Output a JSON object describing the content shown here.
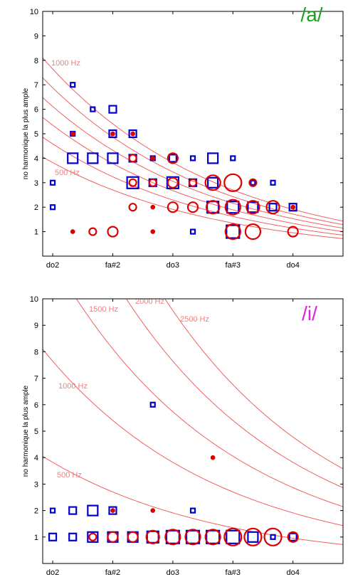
{
  "chart_data": [
    {
      "type": "scatter",
      "vowel_label": "/a/",
      "vowel_color": "#1aa31a",
      "ylabel": "no harmonique la plus ample",
      "xlabel": "",
      "ylim": [
        0,
        10
      ],
      "xlim": [
        -1,
        29
      ],
      "x_ticks": [
        {
          "x": 0,
          "label": "do2"
        },
        {
          "x": 6,
          "label": "fa#2"
        },
        {
          "x": 12,
          "label": "do3"
        },
        {
          "x": 18,
          "label": "fa#3"
        },
        {
          "x": 24,
          "label": "do4"
        }
      ],
      "y_ticks": [
        1,
        2,
        3,
        4,
        5,
        6,
        7,
        8,
        9,
        10
      ],
      "grid": false,
      "iso_frequency_hz": [
        500,
        600,
        700,
        800,
        900,
        1000
      ],
      "iso_labels": [
        {
          "hz": 500,
          "text": "500 Hz"
        },
        {
          "hz": 1000,
          "text": "1000 Hz"
        }
      ],
      "series": [
        {
          "marker": "square",
          "color": "#0000cc",
          "points": [
            {
              "x": 0,
              "y": 2,
              "s": 1
            },
            {
              "x": 0,
              "y": 3,
              "s": 1
            },
            {
              "x": 2,
              "y": 4,
              "s": 3
            },
            {
              "x": 2,
              "y": 5,
              "s": 1
            },
            {
              "x": 2,
              "y": 7,
              "s": 1
            },
            {
              "x": 4,
              "y": 4,
              "s": 3
            },
            {
              "x": 4,
              "y": 6,
              "s": 1
            },
            {
              "x": 6,
              "y": 4,
              "s": 3
            },
            {
              "x": 6,
              "y": 5,
              "s": 2
            },
            {
              "x": 6,
              "y": 6,
              "s": 2
            },
            {
              "x": 8,
              "y": 3,
              "s": 4
            },
            {
              "x": 8,
              "y": 4,
              "s": 2
            },
            {
              "x": 8,
              "y": 5,
              "s": 2
            },
            {
              "x": 10,
              "y": 3,
              "s": 2
            },
            {
              "x": 10,
              "y": 4,
              "s": 1
            },
            {
              "x": 12,
              "y": 3,
              "s": 4
            },
            {
              "x": 12,
              "y": 4,
              "s": 2
            },
            {
              "x": 14,
              "y": 1,
              "s": 1
            },
            {
              "x": 14,
              "y": 3,
              "s": 2
            },
            {
              "x": 14,
              "y": 4,
              "s": 1
            },
            {
              "x": 16,
              "y": 2,
              "s": 4
            },
            {
              "x": 16,
              "y": 3,
              "s": 3
            },
            {
              "x": 16,
              "y": 4,
              "s": 3
            },
            {
              "x": 18,
              "y": 1,
              "s": 5
            },
            {
              "x": 18,
              "y": 2,
              "s": 4
            },
            {
              "x": 18,
              "y": 4,
              "s": 1
            },
            {
              "x": 20,
              "y": 2,
              "s": 3
            },
            {
              "x": 20,
              "y": 3,
              "s": 1
            },
            {
              "x": 22,
              "y": 2,
              "s": 2
            },
            {
              "x": 22,
              "y": 3,
              "s": 1
            },
            {
              "x": 24,
              "y": 2,
              "s": 2
            }
          ]
        },
        {
          "marker": "circle",
          "color": "#dd0000",
          "points": [
            {
              "x": 2,
              "y": 1,
              "s": 1
            },
            {
              "x": 2,
              "y": 5,
              "s": 1
            },
            {
              "x": 4,
              "y": 1,
              "s": 2
            },
            {
              "x": 6,
              "y": 1,
              "s": 3
            },
            {
              "x": 6,
              "y": 5,
              "s": 1
            },
            {
              "x": 8,
              "y": 2,
              "s": 2
            },
            {
              "x": 8,
              "y": 3,
              "s": 2
            },
            {
              "x": 8,
              "y": 4,
              "s": 2
            },
            {
              "x": 8,
              "y": 5,
              "s": 1
            },
            {
              "x": 10,
              "y": 1,
              "s": 1
            },
            {
              "x": 10,
              "y": 2,
              "s": 1
            },
            {
              "x": 10,
              "y": 3,
              "s": 2
            },
            {
              "x": 10,
              "y": 4,
              "s": 1
            },
            {
              "x": 12,
              "y": 2,
              "s": 3
            },
            {
              "x": 12,
              "y": 3,
              "s": 3
            },
            {
              "x": 12,
              "y": 4,
              "s": 3
            },
            {
              "x": 14,
              "y": 2,
              "s": 3
            },
            {
              "x": 14,
              "y": 3,
              "s": 2
            },
            {
              "x": 16,
              "y": 2,
              "s": 4
            },
            {
              "x": 16,
              "y": 3,
              "s": 5
            },
            {
              "x": 18,
              "y": 1,
              "s": 5
            },
            {
              "x": 18,
              "y": 2,
              "s": 5
            },
            {
              "x": 18,
              "y": 3,
              "s": 6
            },
            {
              "x": 20,
              "y": 1,
              "s": 5
            },
            {
              "x": 20,
              "y": 2,
              "s": 4
            },
            {
              "x": 20,
              "y": 3,
              "s": 2
            },
            {
              "x": 22,
              "y": 2,
              "s": 4
            },
            {
              "x": 24,
              "y": 1,
              "s": 3
            },
            {
              "x": 24,
              "y": 2,
              "s": 1
            }
          ]
        }
      ]
    },
    {
      "type": "scatter",
      "vowel_label": "/i/",
      "vowel_color": "#e020e0",
      "ylabel": "no harmonique la plus ample",
      "xlabel": "",
      "ylim": [
        0,
        10
      ],
      "xlim": [
        -1,
        29
      ],
      "x_ticks": [
        {
          "x": 0,
          "label": "do2"
        },
        {
          "x": 6,
          "label": "fa#2"
        },
        {
          "x": 12,
          "label": "do3"
        },
        {
          "x": 18,
          "label": "fa#3"
        },
        {
          "x": 24,
          "label": "do4"
        }
      ],
      "y_ticks": [
        1,
        2,
        3,
        4,
        5,
        6,
        7,
        8,
        9,
        10
      ],
      "grid": false,
      "iso_frequency_hz": [
        500,
        1000,
        1500,
        2000,
        2500
      ],
      "iso_labels": [
        {
          "hz": 500,
          "text": "500 Hz"
        },
        {
          "hz": 1000,
          "text": "1000 Hz"
        },
        {
          "hz": 1500,
          "text": "1500 Hz"
        },
        {
          "hz": 2000,
          "text": "2000 Hz"
        },
        {
          "hz": 2500,
          "text": "2500 Hz"
        }
      ],
      "series": [
        {
          "marker": "square",
          "color": "#0000cc",
          "points": [
            {
              "x": 0,
              "y": 1,
              "s": 2
            },
            {
              "x": 0,
              "y": 2,
              "s": 1
            },
            {
              "x": 2,
              "y": 1,
              "s": 2
            },
            {
              "x": 2,
              "y": 2,
              "s": 2
            },
            {
              "x": 4,
              "y": 1,
              "s": 3
            },
            {
              "x": 4,
              "y": 2,
              "s": 3
            },
            {
              "x": 6,
              "y": 1,
              "s": 3
            },
            {
              "x": 6,
              "y": 2,
              "s": 2
            },
            {
              "x": 8,
              "y": 1,
              "s": 3
            },
            {
              "x": 10,
              "y": 1,
              "s": 4
            },
            {
              "x": 10,
              "y": 6,
              "s": 1
            },
            {
              "x": 12,
              "y": 1,
              "s": 5
            },
            {
              "x": 14,
              "y": 1,
              "s": 5
            },
            {
              "x": 14,
              "y": 2,
              "s": 1
            },
            {
              "x": 16,
              "y": 1,
              "s": 5
            },
            {
              "x": 18,
              "y": 1,
              "s": 5
            },
            {
              "x": 20,
              "y": 1,
              "s": 3
            },
            {
              "x": 22,
              "y": 1,
              "s": 1
            },
            {
              "x": 24,
              "y": 1,
              "s": 2
            }
          ]
        },
        {
          "marker": "circle",
          "color": "#dd0000",
          "points": [
            {
              "x": 4,
              "y": 1,
              "s": 2
            },
            {
              "x": 6,
              "y": 1,
              "s": 3
            },
            {
              "x": 6,
              "y": 2,
              "s": 1
            },
            {
              "x": 8,
              "y": 1,
              "s": 3
            },
            {
              "x": 10,
              "y": 1,
              "s": 4
            },
            {
              "x": 10,
              "y": 2,
              "s": 1
            },
            {
              "x": 12,
              "y": 1,
              "s": 5
            },
            {
              "x": 14,
              "y": 1,
              "s": 5
            },
            {
              "x": 16,
              "y": 1,
              "s": 5
            },
            {
              "x": 16,
              "y": 4,
              "s": 1
            },
            {
              "x": 18,
              "y": 1,
              "s": 6
            },
            {
              "x": 20,
              "y": 1,
              "s": 6
            },
            {
              "x": 22,
              "y": 1,
              "s": 6
            },
            {
              "x": 24,
              "y": 1,
              "s": 3
            }
          ]
        }
      ]
    }
  ]
}
